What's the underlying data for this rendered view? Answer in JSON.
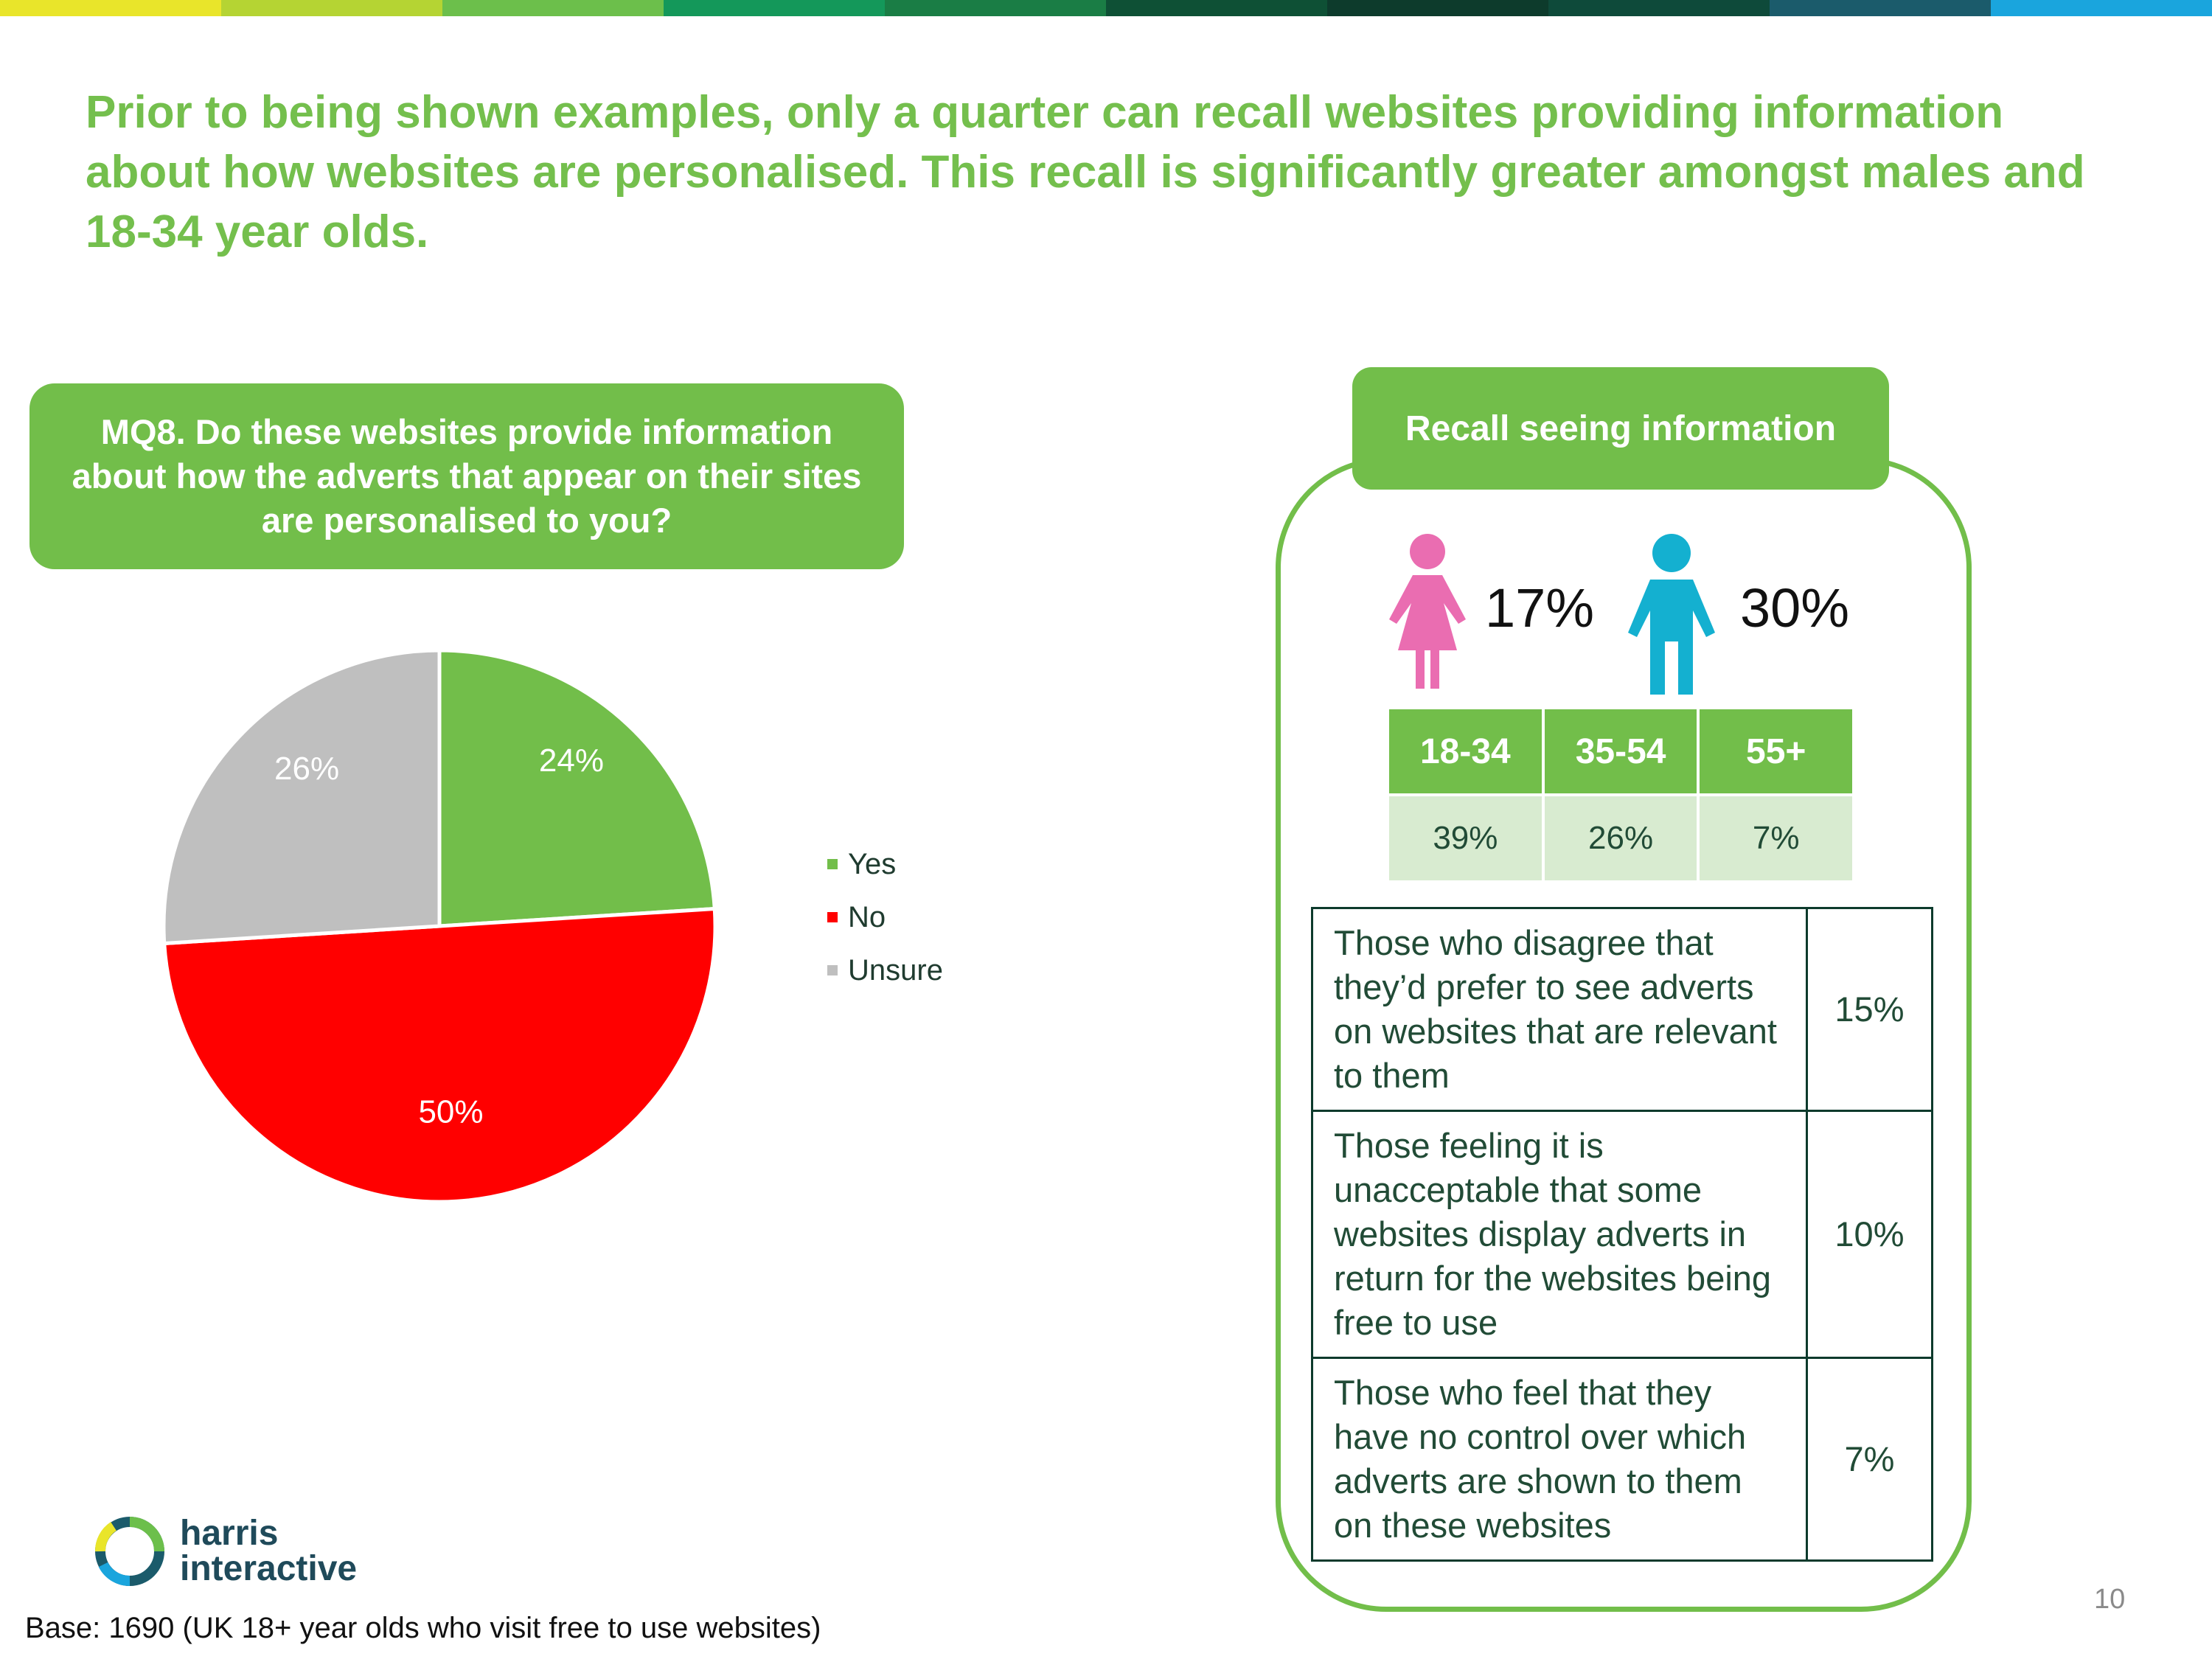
{
  "colors": {
    "bar": [
      "#e9e52a",
      "#b5d433",
      "#6cbf4b",
      "#14985a",
      "#1a7d45",
      "#0e5035",
      "#0d3b2c",
      "#0e4a3a",
      "#1b5b6b",
      "#1aa5dd"
    ],
    "accent": "#72be4a",
    "female": "#ea6db1",
    "male": "#14b0d0"
  },
  "headline": "Prior to being shown examples, only a quarter can recall websites providing information about how websites are personalised. This recall is significantly greater amongst males and 18-34 year olds.",
  "question": "MQ8. Do these websites provide information about how the adverts that appear on their sites are personalised to you?",
  "chart_data": {
    "type": "pie",
    "categories": [
      "Yes",
      "No",
      "Unsure"
    ],
    "values": [
      24,
      50,
      26
    ],
    "labels": [
      "24%",
      "50%",
      "26%"
    ],
    "colors": [
      "#72be4a",
      "#ff0000",
      "#bfbfbf"
    ],
    "legend": [
      "Yes",
      "No",
      "Unsure"
    ],
    "legend_position": "right"
  },
  "recall": {
    "title": "Recall seeing information",
    "female": "17%",
    "male": "30%",
    "age_headers": [
      "18-34",
      "35-54",
      "55+"
    ],
    "age_values": [
      "39%",
      "26%",
      "7%"
    ],
    "statements": [
      {
        "text": "Those who disagree that they’d prefer to see adverts on websites that are relevant to them",
        "value": "15%"
      },
      {
        "text": "Those feeling it is unacceptable that some websites display adverts in return for the websites being free to use",
        "value": "10%"
      },
      {
        "text": "Those who feel that they have no control over which adverts are shown to them on these websites",
        "value": "7%"
      }
    ]
  },
  "logo": {
    "line1": "harris",
    "line2": "interactive"
  },
  "page_number": "10",
  "base_note": "Base: 1690 (UK 18+ year olds who visit free to use websites)"
}
